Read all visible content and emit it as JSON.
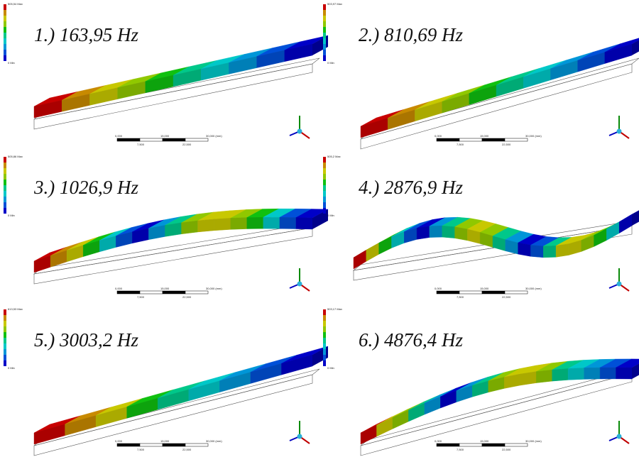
{
  "panels": [
    {
      "label": "1.) 163,95 Hz",
      "legend_max": "505,54 Max",
      "legend_min": "0 Min"
    },
    {
      "label": "2.) 810,69 Hz",
      "legend_max": "503,97 Max",
      "legend_min": "0 Min"
    },
    {
      "label": "3.) 1026,9 Hz",
      "legend_max": "505,86 Max",
      "legend_min": "0 Min"
    },
    {
      "label": "4.) 2876,9 Hz",
      "legend_max": "505,2 Max",
      "legend_min": "0 Min"
    },
    {
      "label": "5.) 3003,2 Hz",
      "legend_max": "613,53 Max",
      "legend_min": "0 Min"
    },
    {
      "label": "6.) 4876,4 Hz",
      "legend_max": "503,17 Max",
      "legend_min": "0 Min"
    }
  ],
  "scale_bar": {
    "labels_top": [
      "0,000",
      "15,000",
      "30,000 (mm)"
    ],
    "labels_bottom": [
      "7,500",
      "22,500"
    ]
  }
}
